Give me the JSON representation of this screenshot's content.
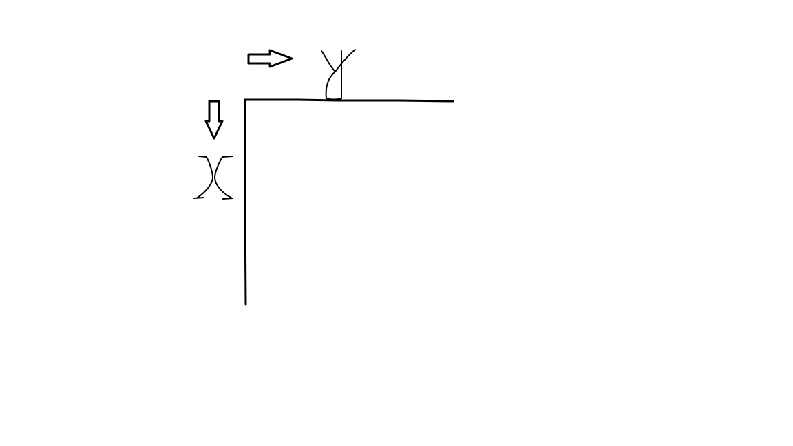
{
  "diagram": {
    "description_free": true,
    "colors": {
      "background": "#ffffff",
      "ink": "#000000"
    },
    "axes": [
      {
        "id": "horizontal",
        "arrow_direction": "right",
        "label_glyph": "Y"
      },
      {
        "id": "vertical",
        "arrow_direction": "down",
        "label_glyph": "X"
      }
    ]
  }
}
